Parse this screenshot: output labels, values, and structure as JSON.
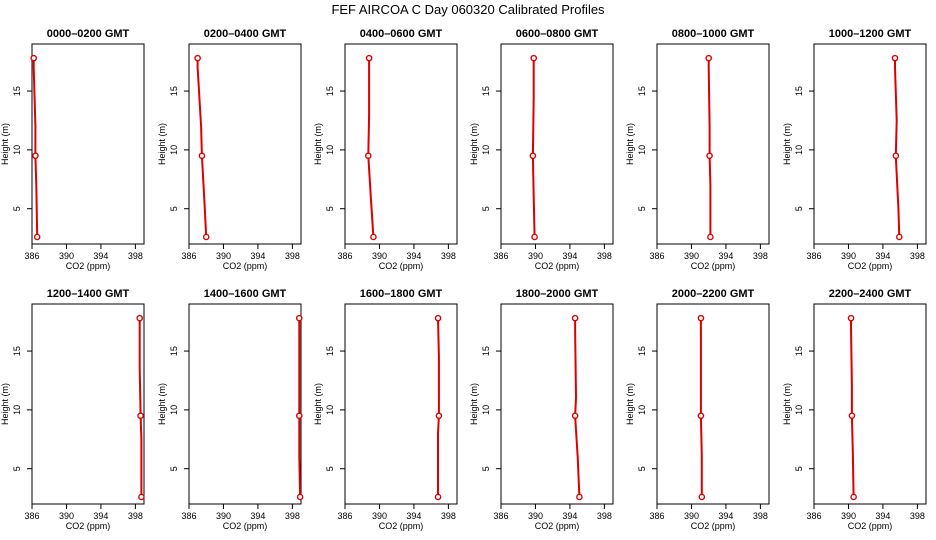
{
  "title": "FEF AIRCOA C  Day 060320  Calibrated Profiles",
  "colors": {
    "series": "#dd0000",
    "axis": "#000000",
    "background": "#ffffff"
  },
  "chart_data": [
    {
      "type": "line",
      "title": "0000–0200 GMT",
      "xlabel": "CO2 (ppm)",
      "ylabel": "Height (m)",
      "xlim": [
        386,
        399
      ],
      "ylim": [
        2,
        19
      ],
      "xticks": [
        386,
        390,
        394,
        398
      ],
      "yticks": [
        5,
        10,
        15
      ],
      "grid": false,
      "points": [
        {
          "x": 386.2,
          "y": 17.8
        },
        {
          "x": 386.2,
          "y": 17.0
        },
        {
          "x": 386.4,
          "y": 12.0
        },
        {
          "x": 386.4,
          "y": 9.5
        },
        {
          "x": 386.5,
          "y": 7.0
        },
        {
          "x": 386.6,
          "y": 2.6
        }
      ],
      "markers": [
        {
          "x": 386.2,
          "y": 17.8
        },
        {
          "x": 386.4,
          "y": 9.5
        },
        {
          "x": 386.6,
          "y": 2.6
        }
      ]
    },
    {
      "type": "line",
      "title": "0200–0400 GMT",
      "xlabel": "CO2 (ppm)",
      "ylabel": "Height (m)",
      "xlim": [
        386,
        399
      ],
      "ylim": [
        2,
        19
      ],
      "xticks": [
        386,
        390,
        394,
        398
      ],
      "yticks": [
        5,
        10,
        15
      ],
      "grid": false,
      "points": [
        {
          "x": 387.0,
          "y": 17.8
        },
        {
          "x": 387.0,
          "y": 17.0
        },
        {
          "x": 387.4,
          "y": 12.0
        },
        {
          "x": 387.5,
          "y": 9.5
        },
        {
          "x": 387.8,
          "y": 5.5
        },
        {
          "x": 388.0,
          "y": 2.6
        }
      ],
      "markers": [
        {
          "x": 387.0,
          "y": 17.8
        },
        {
          "x": 387.5,
          "y": 9.5
        },
        {
          "x": 388.0,
          "y": 2.6
        }
      ]
    },
    {
      "type": "line",
      "title": "0400–0600 GMT",
      "xlabel": "CO2 (ppm)",
      "ylabel": "Height (m)",
      "xlim": [
        386,
        399
      ],
      "ylim": [
        2,
        19
      ],
      "xticks": [
        386,
        390,
        394,
        398
      ],
      "yticks": [
        5,
        10,
        15
      ],
      "grid": false,
      "points": [
        {
          "x": 388.8,
          "y": 17.8
        },
        {
          "x": 388.8,
          "y": 13.0
        },
        {
          "x": 388.7,
          "y": 9.5
        },
        {
          "x": 389.0,
          "y": 6.0
        },
        {
          "x": 389.3,
          "y": 2.6
        }
      ],
      "markers": [
        {
          "x": 388.8,
          "y": 17.8
        },
        {
          "x": 388.7,
          "y": 9.5
        },
        {
          "x": 389.3,
          "y": 2.6
        }
      ]
    },
    {
      "type": "line",
      "title": "0600–0800 GMT",
      "xlabel": "CO2 (ppm)",
      "ylabel": "Height (m)",
      "xlim": [
        386,
        399
      ],
      "ylim": [
        2,
        19
      ],
      "xticks": [
        386,
        390,
        394,
        398
      ],
      "yticks": [
        5,
        10,
        15
      ],
      "grid": false,
      "points": [
        {
          "x": 389.8,
          "y": 17.8
        },
        {
          "x": 389.8,
          "y": 14.5
        },
        {
          "x": 389.7,
          "y": 9.5
        },
        {
          "x": 389.8,
          "y": 6.0
        },
        {
          "x": 389.9,
          "y": 2.6
        }
      ],
      "markers": [
        {
          "x": 389.8,
          "y": 17.8
        },
        {
          "x": 389.7,
          "y": 9.5
        },
        {
          "x": 389.9,
          "y": 2.6
        }
      ]
    },
    {
      "type": "line",
      "title": "0800–1000 GMT",
      "xlabel": "CO2 (ppm)",
      "ylabel": "Height (m)",
      "xlim": [
        386,
        399
      ],
      "ylim": [
        2,
        19
      ],
      "xticks": [
        386,
        390,
        394,
        398
      ],
      "yticks": [
        5,
        10,
        15
      ],
      "grid": false,
      "points": [
        {
          "x": 392.0,
          "y": 17.8
        },
        {
          "x": 392.0,
          "y": 17.0
        },
        {
          "x": 392.1,
          "y": 12.0
        },
        {
          "x": 392.1,
          "y": 9.5
        },
        {
          "x": 392.2,
          "y": 7.0
        },
        {
          "x": 392.2,
          "y": 2.6
        }
      ],
      "markers": [
        {
          "x": 392.0,
          "y": 17.8
        },
        {
          "x": 392.1,
          "y": 9.5
        },
        {
          "x": 392.2,
          "y": 2.6
        }
      ]
    },
    {
      "type": "line",
      "title": "1000–1200 GMT",
      "xlabel": "CO2 (ppm)",
      "ylabel": "Height (m)",
      "xlim": [
        386,
        399
      ],
      "ylim": [
        2,
        19
      ],
      "xticks": [
        386,
        390,
        394,
        398
      ],
      "yticks": [
        5,
        10,
        15
      ],
      "grid": false,
      "points": [
        {
          "x": 395.4,
          "y": 17.8
        },
        {
          "x": 395.4,
          "y": 17.0
        },
        {
          "x": 395.6,
          "y": 12.5
        },
        {
          "x": 395.5,
          "y": 9.5
        },
        {
          "x": 395.8,
          "y": 5.0
        },
        {
          "x": 395.9,
          "y": 2.6
        }
      ],
      "markers": [
        {
          "x": 395.4,
          "y": 17.8
        },
        {
          "x": 395.5,
          "y": 9.5
        },
        {
          "x": 395.9,
          "y": 2.6
        }
      ]
    },
    {
      "type": "line",
      "title": "1200–1400 GMT",
      "xlabel": "CO2 (ppm)",
      "ylabel": "Height (m)",
      "xlim": [
        386,
        399
      ],
      "ylim": [
        2,
        19
      ],
      "xticks": [
        386,
        390,
        394,
        398
      ],
      "yticks": [
        5,
        10,
        15
      ],
      "grid": false,
      "points": [
        {
          "x": 398.5,
          "y": 17.8
        },
        {
          "x": 398.5,
          "y": 13.5
        },
        {
          "x": 398.6,
          "y": 9.5
        },
        {
          "x": 398.7,
          "y": 7.5
        },
        {
          "x": 398.7,
          "y": 2.6
        }
      ],
      "markers": [
        {
          "x": 398.5,
          "y": 17.8
        },
        {
          "x": 398.6,
          "y": 9.5
        },
        {
          "x": 398.7,
          "y": 2.6
        }
      ]
    },
    {
      "type": "line",
      "title": "1400–1600 GMT",
      "xlabel": "CO2 (ppm)",
      "ylabel": "Height (m)",
      "xlim": [
        386,
        399
      ],
      "ylim": [
        2,
        19
      ],
      "xticks": [
        386,
        390,
        394,
        398
      ],
      "yticks": [
        5,
        10,
        15
      ],
      "grid": false,
      "points": [
        {
          "x": 398.8,
          "y": 17.8
        },
        {
          "x": 398.8,
          "y": 15.5
        },
        {
          "x": 398.8,
          "y": 9.5
        },
        {
          "x": 398.8,
          "y": 6.0
        },
        {
          "x": 398.9,
          "y": 2.6
        }
      ],
      "markers": [
        {
          "x": 398.8,
          "y": 17.8
        },
        {
          "x": 398.8,
          "y": 9.5
        },
        {
          "x": 398.9,
          "y": 2.6
        }
      ]
    },
    {
      "type": "line",
      "title": "1600–1800 GMT",
      "xlabel": "CO2 (ppm)",
      "ylabel": "Height (m)",
      "xlim": [
        386,
        399
      ],
      "ylim": [
        2,
        19
      ],
      "xticks": [
        386,
        390,
        394,
        398
      ],
      "yticks": [
        5,
        10,
        15
      ],
      "grid": false,
      "points": [
        {
          "x": 396.8,
          "y": 17.8
        },
        {
          "x": 396.9,
          "y": 14.5
        },
        {
          "x": 396.9,
          "y": 9.5
        },
        {
          "x": 396.8,
          "y": 8.0
        },
        {
          "x": 396.8,
          "y": 2.6
        }
      ],
      "markers": [
        {
          "x": 396.8,
          "y": 17.8
        },
        {
          "x": 396.9,
          "y": 9.5
        },
        {
          "x": 396.8,
          "y": 2.6
        }
      ]
    },
    {
      "type": "line",
      "title": "1800–2000 GMT",
      "xlabel": "CO2 (ppm)",
      "ylabel": "Height (m)",
      "xlim": [
        386,
        399
      ],
      "ylim": [
        2,
        19
      ],
      "xticks": [
        386,
        390,
        394,
        398
      ],
      "yticks": [
        5,
        10,
        15
      ],
      "grid": false,
      "points": [
        {
          "x": 394.6,
          "y": 17.8
        },
        {
          "x": 394.6,
          "y": 17.0
        },
        {
          "x": 394.7,
          "y": 11.0
        },
        {
          "x": 394.6,
          "y": 9.5
        },
        {
          "x": 394.9,
          "y": 6.0
        },
        {
          "x": 395.1,
          "y": 2.6
        }
      ],
      "markers": [
        {
          "x": 394.6,
          "y": 17.8
        },
        {
          "x": 394.6,
          "y": 9.5
        },
        {
          "x": 395.1,
          "y": 2.6
        }
      ]
    },
    {
      "type": "line",
      "title": "2000–2200 GMT",
      "xlabel": "CO2 (ppm)",
      "ylabel": "Height (m)",
      "xlim": [
        386,
        399
      ],
      "ylim": [
        2,
        19
      ],
      "xticks": [
        386,
        390,
        394,
        398
      ],
      "yticks": [
        5,
        10,
        15
      ],
      "grid": false,
      "points": [
        {
          "x": 391.1,
          "y": 17.8
        },
        {
          "x": 391.1,
          "y": 12.0
        },
        {
          "x": 391.1,
          "y": 9.5
        },
        {
          "x": 391.2,
          "y": 6.0
        },
        {
          "x": 391.2,
          "y": 2.6
        }
      ],
      "markers": [
        {
          "x": 391.1,
          "y": 17.8
        },
        {
          "x": 391.1,
          "y": 9.5
        },
        {
          "x": 391.2,
          "y": 2.6
        }
      ]
    },
    {
      "type": "line",
      "title": "2200–2400 GMT",
      "xlabel": "CO2 (ppm)",
      "ylabel": "Height (m)",
      "xlim": [
        386,
        399
      ],
      "ylim": [
        2,
        19
      ],
      "xticks": [
        386,
        390,
        394,
        398
      ],
      "yticks": [
        5,
        10,
        15
      ],
      "grid": false,
      "points": [
        {
          "x": 390.3,
          "y": 17.8
        },
        {
          "x": 390.3,
          "y": 17.0
        },
        {
          "x": 390.4,
          "y": 12.0
        },
        {
          "x": 390.4,
          "y": 9.5
        },
        {
          "x": 390.5,
          "y": 6.5
        },
        {
          "x": 390.6,
          "y": 2.6
        }
      ],
      "markers": [
        {
          "x": 390.3,
          "y": 17.8
        },
        {
          "x": 390.4,
          "y": 9.5
        },
        {
          "x": 390.6,
          "y": 2.6
        }
      ]
    }
  ]
}
